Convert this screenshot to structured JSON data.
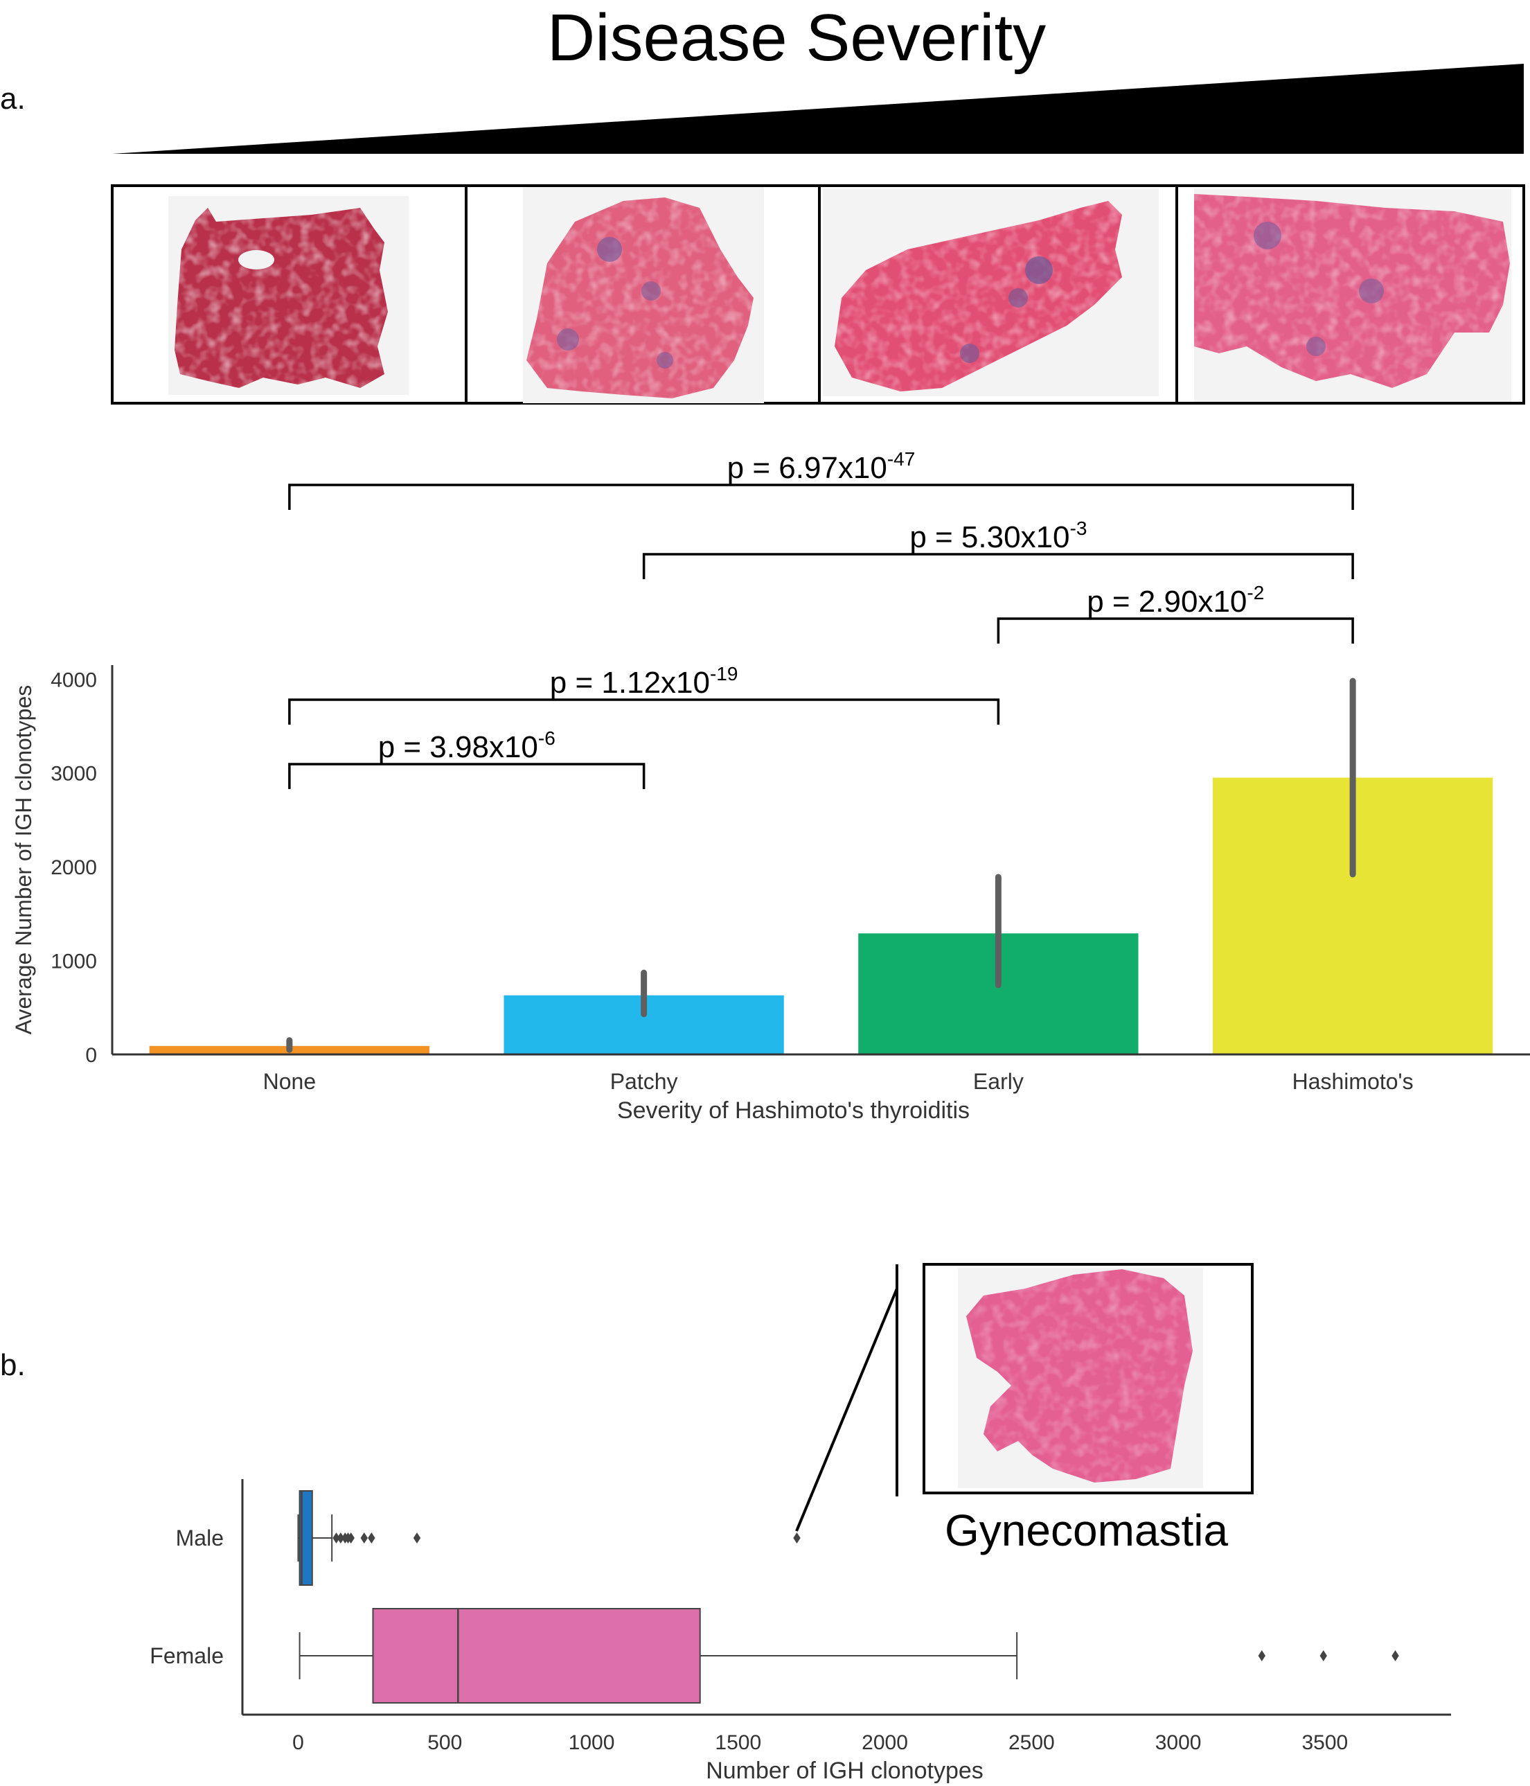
{
  "figure": {
    "title": "Disease Severity",
    "panel_a_label": "a.",
    "panel_b_label": "b.",
    "gyn_label": "Gynecomastia"
  },
  "colors": {
    "none": "#f39323",
    "patchy": "#22b8ec",
    "early": "#11ae6b",
    "hashimoto": "#e8e435",
    "male_box": "#1f77c4",
    "female_box": "#de6fad",
    "tissue": "#e45f92",
    "errorbar": "#5f5f5f"
  },
  "chart_data": [
    {
      "type": "bar",
      "categories": [
        "None",
        "Patchy",
        "Early",
        "Hashimoto's"
      ],
      "values": [
        90,
        630,
        1290,
        2950
      ],
      "error_low": [
        50,
        430,
        740,
        1920
      ],
      "error_high": [
        150,
        870,
        1890,
        3980
      ],
      "xlabel": "Severity of Hashimoto's thyroiditis",
      "ylabel": "Average Number of IGH clonotypes",
      "ylim": [
        0,
        4150
      ],
      "yticks": [
        0,
        1000,
        2000,
        3000,
        4000
      ],
      "grid": false,
      "significance": [
        {
          "from": "None",
          "to": "Hashimoto's",
          "base": "p = 6.97x10",
          "exp": "-47"
        },
        {
          "from": "Patchy",
          "to": "Hashimoto's",
          "base": "p = 5.30x10",
          "exp": "-3"
        },
        {
          "from": "Early",
          "to": "Hashimoto's",
          "base": "p = 2.90x10",
          "exp": "-2"
        },
        {
          "from": "None",
          "to": "Early",
          "base": "p = 1.12x10",
          "exp": "-19"
        },
        {
          "from": "None",
          "to": "Patchy",
          "base": "p = 3.98x10",
          "exp": "-6"
        }
      ]
    },
    {
      "type": "box",
      "orientation": "horizontal",
      "categories": [
        "Male",
        "Female"
      ],
      "xlabel": "Number of IGH clonotypes",
      "xlim": [
        -190,
        3930
      ],
      "xticks": [
        0,
        500,
        1000,
        1500,
        2000,
        2500,
        3000,
        3500
      ],
      "boxes": [
        {
          "name": "Male",
          "whisker_low": 0,
          "q1": 5,
          "median": 12,
          "q3": 48,
          "whisker_high": 115,
          "outliers": [
            130,
            145,
            160,
            170,
            180,
            225,
            250,
            405,
            1700
          ]
        },
        {
          "name": "Female",
          "whisker_low": 5,
          "q1": 255,
          "median": 545,
          "q3": 1370,
          "whisker_high": 2450,
          "outliers": [
            3285,
            3495,
            3740
          ]
        }
      ]
    }
  ]
}
